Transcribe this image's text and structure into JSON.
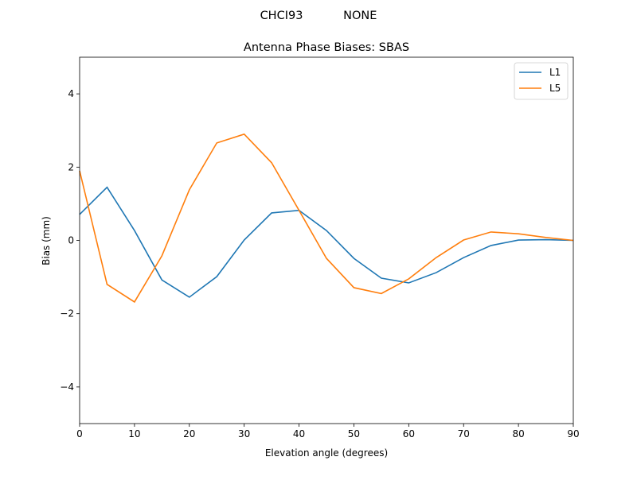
{
  "chart_data": {
    "type": "line",
    "suptitle": "CHCI93           NONE",
    "title": "Antenna Phase Biases: SBAS",
    "xlabel": "Elevation angle (degrees)",
    "ylabel": "Bias (mm)",
    "xlim": [
      0,
      90
    ],
    "ylim": [
      -5,
      5
    ],
    "xticks": [
      0,
      10,
      20,
      30,
      40,
      50,
      60,
      70,
      80,
      90
    ],
    "yticks": [
      -4,
      -2,
      0,
      2,
      4
    ],
    "grid": false,
    "legend_position": "top-right",
    "x": [
      0,
      5,
      10,
      15,
      20,
      25,
      30,
      35,
      40,
      45,
      50,
      55,
      60,
      65,
      70,
      75,
      80,
      85,
      90
    ],
    "series": [
      {
        "name": "L1",
        "color": "#1f77b4",
        "values": [
          0.71,
          1.45,
          0.27,
          -1.08,
          -1.55,
          -0.99,
          0.01,
          0.75,
          0.82,
          0.27,
          -0.49,
          -1.03,
          -1.16,
          -0.88,
          -0.47,
          -0.14,
          0.01,
          0.02,
          0.0
        ]
      },
      {
        "name": "L5",
        "color": "#ff7f0e",
        "values": [
          1.9,
          -1.2,
          -1.68,
          -0.42,
          1.38,
          2.66,
          2.9,
          2.12,
          0.82,
          -0.49,
          -1.29,
          -1.45,
          -1.05,
          -0.47,
          0.01,
          0.23,
          0.18,
          0.08,
          0.0
        ]
      }
    ]
  }
}
